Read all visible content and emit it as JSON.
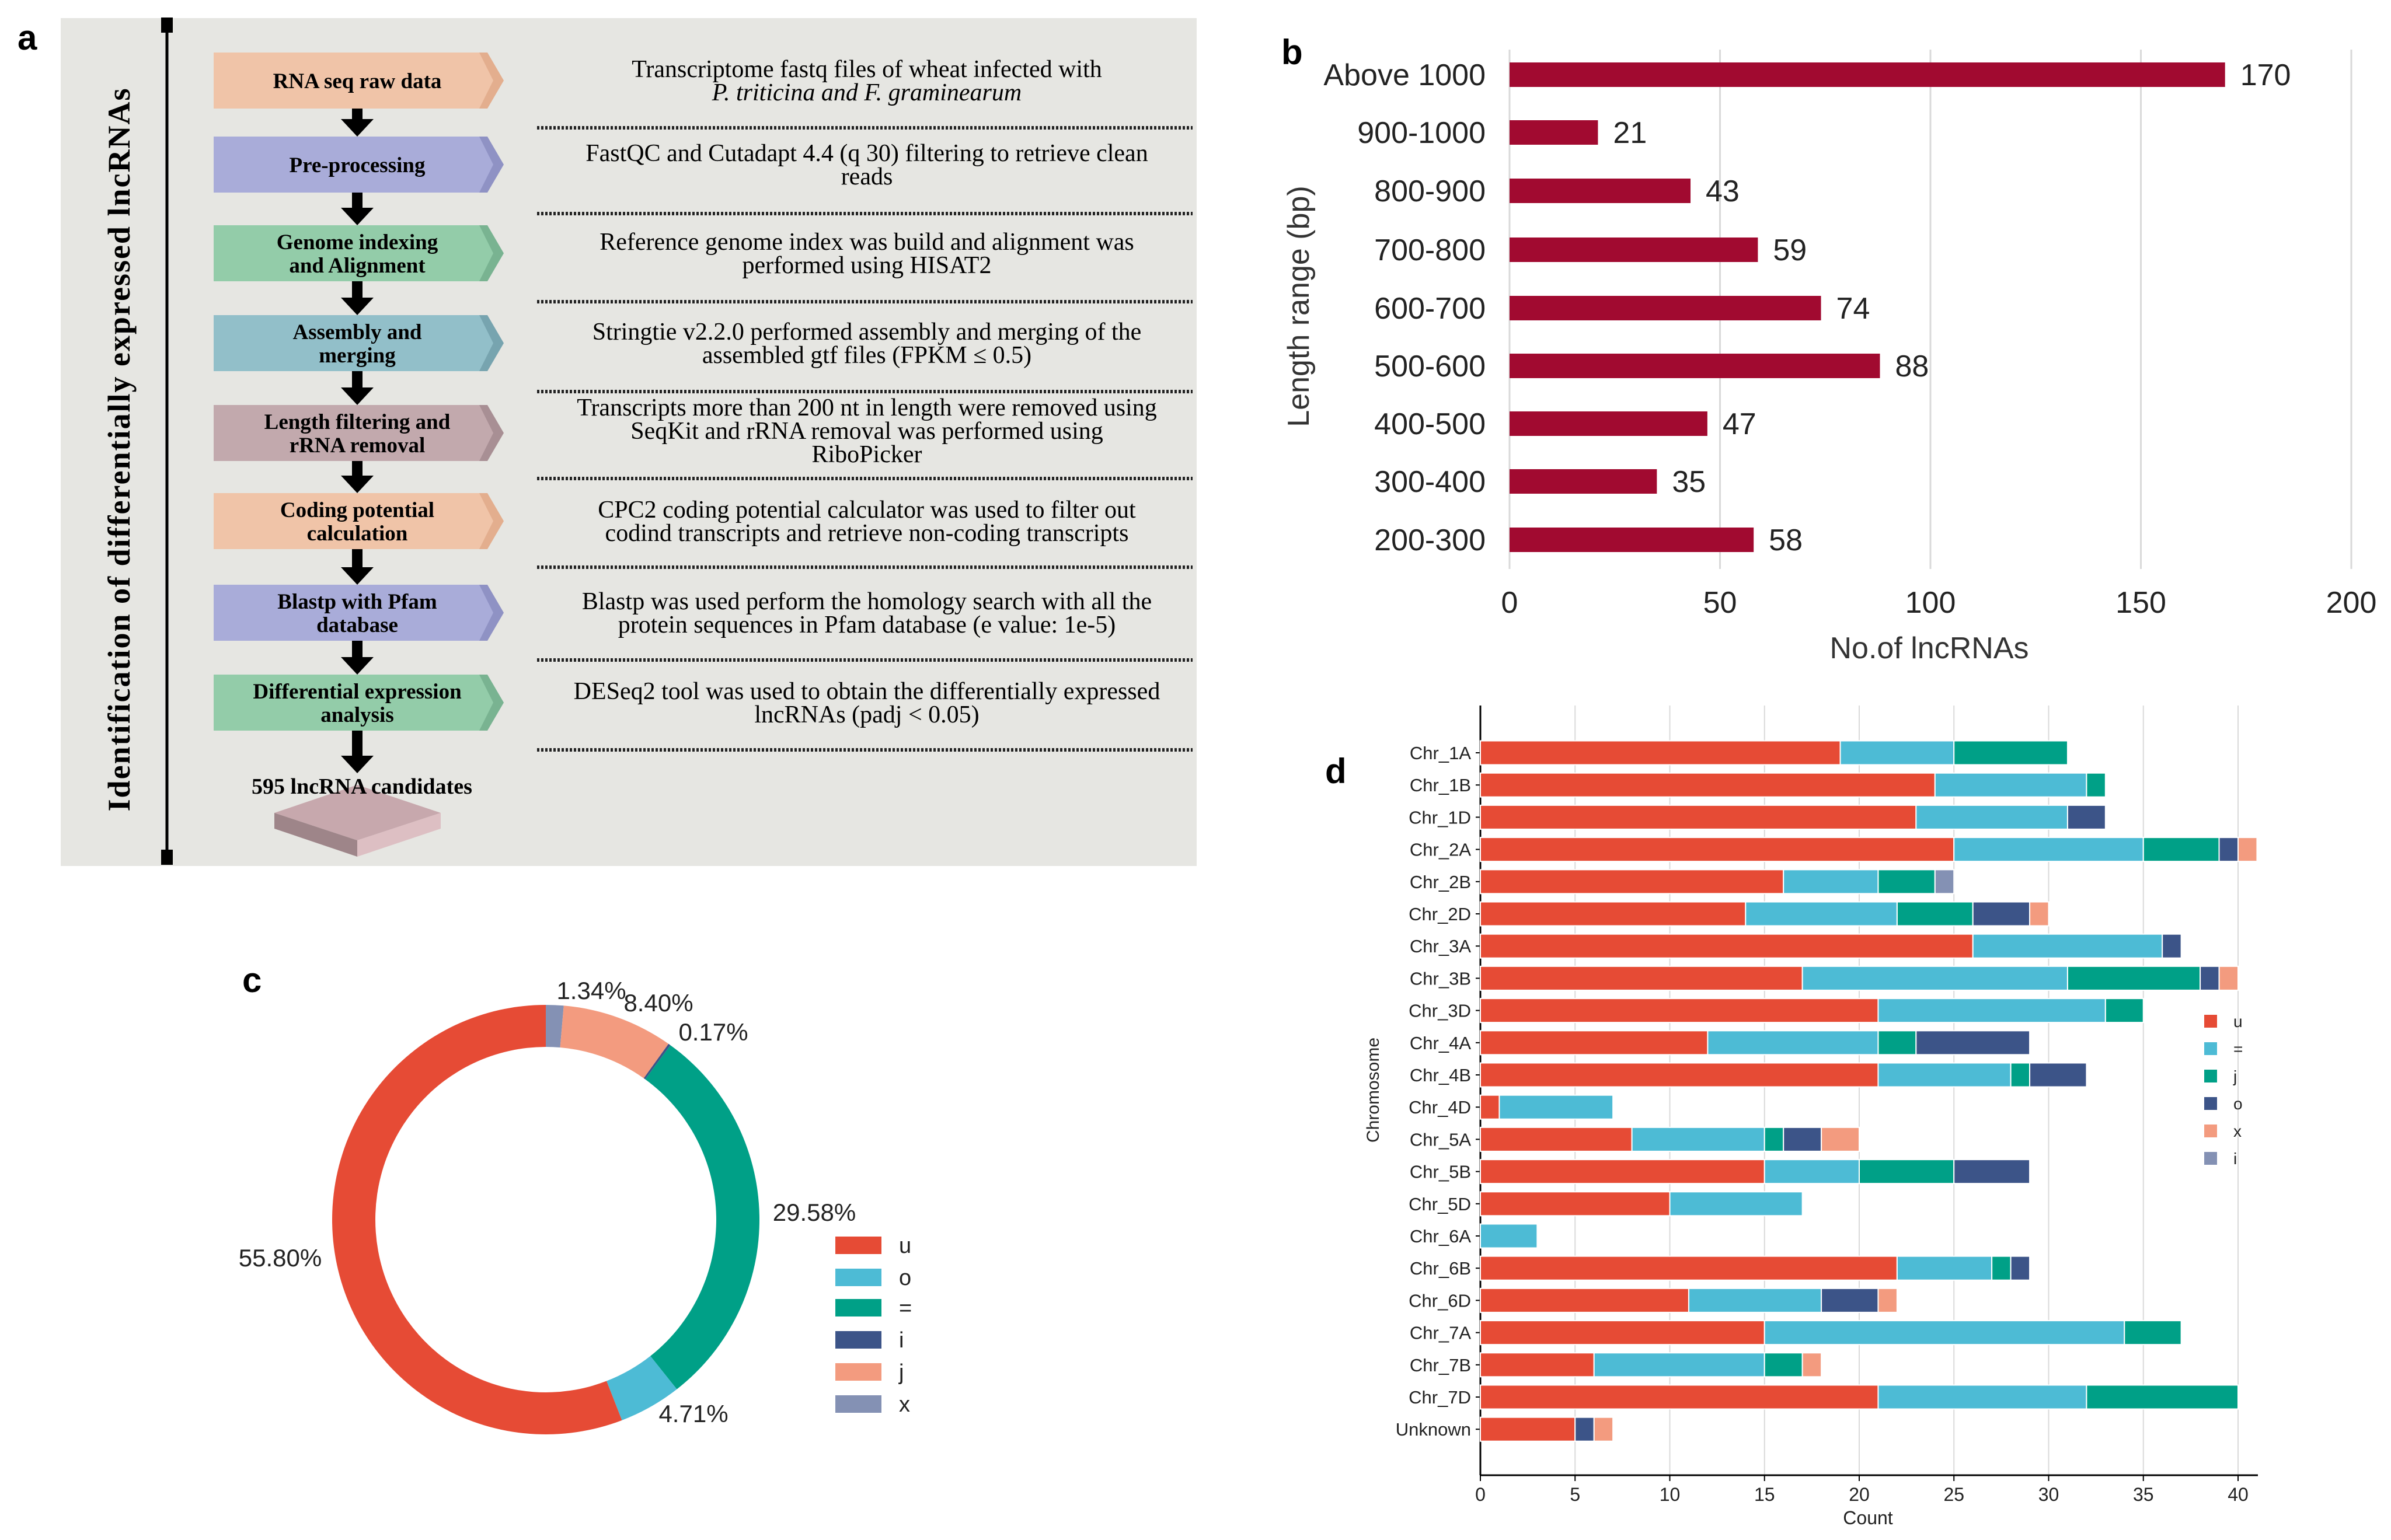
{
  "panel_a": {
    "label": "a",
    "vertical_title": "Identification of differentially expressed lncRNAs",
    "steps": [
      {
        "box": [
          "RNA seq raw data"
        ],
        "color": "#F0C4A8",
        "edge": "#E3AE8E",
        "desc": [
          "Transcriptome fastq files of wheat infected with",
          "P. triticina and F. graminearum"
        ]
      },
      {
        "box": [
          "Pre-processing"
        ],
        "color": "#A9ACD9",
        "edge": "#8F92C4",
        "desc": [
          "FastQC and Cutadapt 4.4 (q 30) filtering to retrieve clean",
          "reads"
        ]
      },
      {
        "box": [
          "Genome indexing",
          "and Alignment"
        ],
        "color": "#93CCA9",
        "edge": "#79B391",
        "desc": [
          "Reference genome index was build and alignment was",
          "performed using HISAT2"
        ]
      },
      {
        "box": [
          "Assembly and",
          "merging"
        ],
        "color": "#92BFC9",
        "edge": "#77A4AF",
        "desc": [
          "Stringtie v2.2.0 performed assembly and merging of the",
          "assembled gtf files (FPKM ≤ 0.5)"
        ]
      },
      {
        "box": [
          "Length filtering and",
          "rRNA removal"
        ],
        "color": "#C2A9AD",
        "edge": "#A88F94",
        "desc": [
          "Transcripts more than 200 nt in length were removed using",
          "SeqKit and rRNA removal was performed using",
          "RiboPicker"
        ]
      },
      {
        "box": [
          "Coding potential",
          "calculation"
        ],
        "color": "#F0C4A8",
        "edge": "#E3AE8E",
        "desc": [
          "CPC2 coding potential calculator was used to filter out",
          "codind transcripts and retrieve non-coding transcripts"
        ]
      },
      {
        "box": [
          "Blastp with Pfam",
          "database"
        ],
        "color": "#A9ACD9",
        "edge": "#8F92C4",
        "desc": [
          "Blastp was used perform the homology search with all the",
          "protein sequences in Pfam database (e value: 1e-5)"
        ]
      },
      {
        "box": [
          "Differential expression",
          "analysis"
        ],
        "color": "#93CCA9",
        "edge": "#79B391",
        "desc": [
          "DESeq2 tool was used to obtain the differentially expressed",
          "lncRNAs (padj < 0.05)"
        ]
      }
    ],
    "result": "595 lncRNA candidates"
  },
  "chart_data": [
    {
      "panel": "b",
      "type": "bar",
      "orientation": "horizontal",
      "categories": [
        "Above 1000",
        "900-1000",
        "800-900",
        "700-800",
        "600-700",
        "500-600",
        "400-500",
        "300-400",
        "200-300"
      ],
      "values": [
        170,
        21,
        43,
        59,
        74,
        88,
        47,
        35,
        58
      ],
      "xlabel": "No.of lncRNAs",
      "ylabel": "Length range (bp)",
      "xlim": [
        0,
        200
      ],
      "xticks": [
        0,
        50,
        100,
        150,
        200
      ],
      "grid": "vertical",
      "bar_color": "#A10A30",
      "data_labels": true
    },
    {
      "panel": "c",
      "type": "pie",
      "donut": true,
      "slices": [
        {
          "name": "x",
          "value": 1.34,
          "label": "1.34%",
          "color": "#8491B4"
        },
        {
          "name": "j",
          "value": 8.4,
          "label": "8.40%",
          "color": "#F39B7F"
        },
        {
          "name": "i",
          "value": 0.17,
          "label": "0.17%",
          "color": "#3C5488"
        },
        {
          "name": "=",
          "value": 29.58,
          "label": "29.58%",
          "color": "#00A087"
        },
        {
          "name": "o",
          "value": 4.71,
          "label": "4.71%",
          "color": "#4DBBD5"
        },
        {
          "name": "u",
          "value": 55.8,
          "label": "55.80%",
          "color": "#E64B35"
        }
      ],
      "legend": [
        {
          "name": "u",
          "color": "#E64B35"
        },
        {
          "name": "o",
          "color": "#4DBBD5"
        },
        {
          "name": "=",
          "color": "#00A087"
        },
        {
          "name": "i",
          "color": "#3C5488"
        },
        {
          "name": "j",
          "color": "#F39B7F"
        },
        {
          "name": "x",
          "color": "#8491B4"
        }
      ],
      "legend_position": "right"
    },
    {
      "panel": "d",
      "type": "bar",
      "orientation": "horizontal",
      "stacked": true,
      "categories": [
        "Chr_1A",
        "Chr_1B",
        "Chr_1D",
        "Chr_2A",
        "Chr_2B",
        "Chr_2D",
        "Chr_3A",
        "Chr_3B",
        "Chr_3D",
        "Chr_4A",
        "Chr_4B",
        "Chr_4D",
        "Chr_5A",
        "Chr_5B",
        "Chr_5D",
        "Chr_6A",
        "Chr_6B",
        "Chr_6D",
        "Chr_7A",
        "Chr_7B",
        "Chr_7D",
        "Unknown"
      ],
      "series": [
        {
          "name": "u",
          "color": "#E64B35",
          "values": [
            19,
            24,
            23,
            25,
            16,
            14,
            26,
            17,
            21,
            12,
            21,
            1,
            8,
            15,
            10,
            0,
            22,
            11,
            15,
            6,
            21,
            5
          ]
        },
        {
          "name": "=",
          "color": "#4DBBD5",
          "values": [
            6,
            8,
            8,
            10,
            5,
            8,
            10,
            14,
            12,
            9,
            7,
            6,
            7,
            5,
            7,
            3,
            5,
            7,
            19,
            9,
            11,
            0
          ]
        },
        {
          "name": "j",
          "color": "#00A087",
          "values": [
            6,
            1,
            0,
            4,
            3,
            4,
            0,
            7,
            2,
            2,
            1,
            0,
            1,
            5,
            0,
            0,
            1,
            0,
            3,
            2,
            8,
            0
          ]
        },
        {
          "name": "o",
          "color": "#3C5488",
          "values": [
            0,
            0,
            2,
            1,
            0,
            3,
            1,
            1,
            0,
            6,
            3,
            0,
            2,
            4,
            0,
            0,
            1,
            3,
            0,
            0,
            0,
            1
          ]
        },
        {
          "name": "x",
          "color": "#F39B7F",
          "values": [
            0,
            0,
            0,
            1,
            0,
            1,
            0,
            1,
            0,
            0,
            0,
            0,
            2,
            0,
            0,
            0,
            0,
            1,
            0,
            1,
            0,
            1
          ]
        },
        {
          "name": "i",
          "color": "#8491B4",
          "values": [
            0,
            0,
            0,
            0,
            1,
            0,
            0,
            0,
            0,
            0,
            0,
            0,
            0,
            0,
            0,
            0,
            0,
            0,
            0,
            0,
            0,
            0
          ]
        }
      ],
      "xlabel": "Count",
      "ylabel": "Chromosome",
      "xlim": [
        0,
        40
      ],
      "xticks": [
        0,
        5,
        10,
        15,
        20,
        25,
        30,
        35,
        40
      ],
      "grid": "vertical",
      "legend_position": "right"
    }
  ]
}
